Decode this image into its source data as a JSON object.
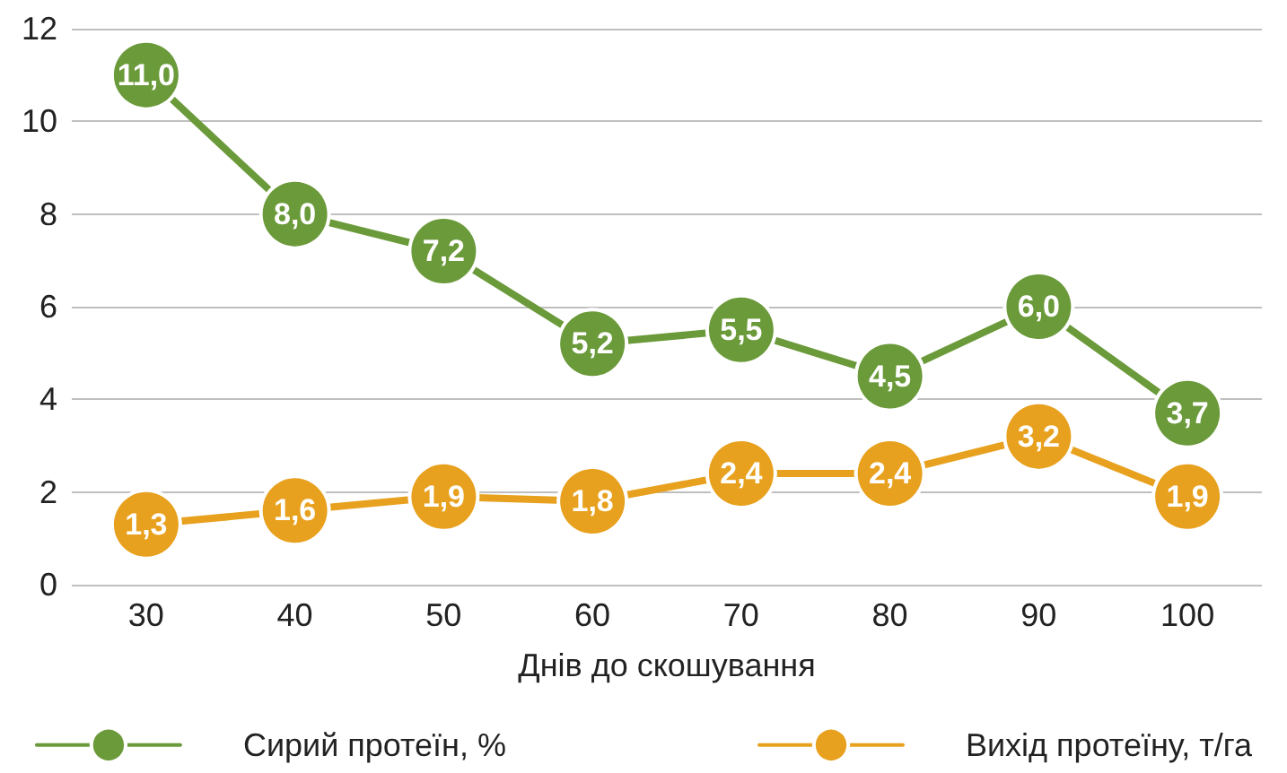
{
  "chart_data": {
    "type": "line",
    "xlabel": "Днів до скошування",
    "categories": [
      "30",
      "40",
      "50",
      "60",
      "70",
      "80",
      "90",
      "100"
    ],
    "series": [
      {
        "name": "Сирий протеїн, %",
        "color": "#6b9a3a",
        "values": [
          11.0,
          8.0,
          7.2,
          5.2,
          5.5,
          4.5,
          6.0,
          3.7
        ],
        "value_labels": [
          "11,0",
          "8,0",
          "7,2",
          "5,2",
          "5,5",
          "4,5",
          "6,0",
          "3,7"
        ]
      },
      {
        "name": "Вихід протеїну, т/га",
        "color": "#e8a11e",
        "values": [
          1.3,
          1.6,
          1.9,
          1.8,
          2.4,
          2.4,
          3.2,
          1.9
        ],
        "value_labels": [
          "1,3",
          "1,6",
          "1,9",
          "1,8",
          "2,4",
          "2,4",
          "3,2",
          "1,9"
        ]
      }
    ],
    "ylim": [
      0,
      12
    ],
    "yticks": [
      0,
      2,
      4,
      6,
      8,
      10,
      12
    ],
    "grid": "y",
    "legend": "bottom",
    "marker": "circle",
    "line_style": "solid"
  }
}
